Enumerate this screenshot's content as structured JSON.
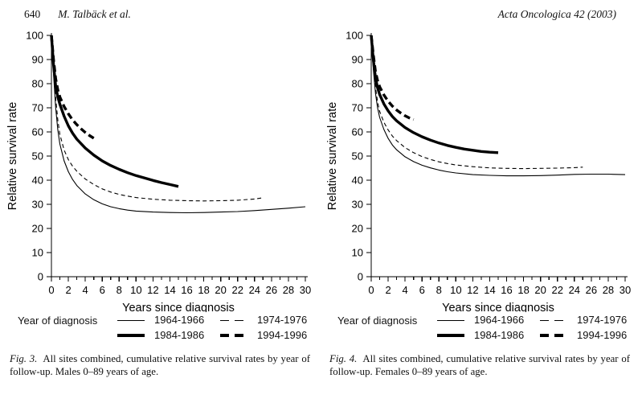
{
  "header": {
    "page_number": "640",
    "running_author": "M. Talbäck et al.",
    "journal": "Acta Oncologica 42 (2003)"
  },
  "chart_data": [
    {
      "type": "line",
      "title": "",
      "xlabel": "Years since diagnosis",
      "ylabel": "Relative survival rate",
      "xlim": [
        0,
        30
      ],
      "ylim": [
        0,
        100
      ],
      "x_label_step": 2,
      "x_minor_step": 1,
      "y_tick_step": 10,
      "grid": false,
      "legend_position": "below",
      "legend_title": "Year of diagnosis",
      "series": [
        {
          "name": "1964-1966",
          "style": "thin-solid",
          "points": [
            [
              0,
              100
            ],
            [
              0.25,
              84
            ],
            [
              0.5,
              70
            ],
            [
              0.75,
              61
            ],
            [
              1,
              55
            ],
            [
              1.5,
              48
            ],
            [
              2,
              43.5
            ],
            [
              2.5,
              40.3
            ],
            [
              3,
              37.8
            ],
            [
              4,
              34.3
            ],
            [
              5,
              31.9
            ],
            [
              6,
              30.2
            ],
            [
              7,
              29
            ],
            [
              8,
              28.2
            ],
            [
              9,
              27.6
            ],
            [
              10,
              27.2
            ],
            [
              12,
              26.8
            ],
            [
              14,
              26.6
            ],
            [
              16,
              26.5
            ],
            [
              18,
              26.6
            ],
            [
              20,
              26.8
            ],
            [
              22,
              27
            ],
            [
              24,
              27.4
            ],
            [
              26,
              27.9
            ],
            [
              28,
              28.4
            ],
            [
              30,
              29
            ]
          ]
        },
        {
          "name": "1974-1976",
          "style": "thin-dashed",
          "points": [
            [
              0,
              100
            ],
            [
              0.25,
              86
            ],
            [
              0.5,
              74
            ],
            [
              0.75,
              65
            ],
            [
              1,
              59
            ],
            [
              1.5,
              52.5
            ],
            [
              2,
              48.5
            ],
            [
              2.5,
              45.8
            ],
            [
              3,
              43.7
            ],
            [
              4,
              40.5
            ],
            [
              5,
              38.2
            ],
            [
              6,
              36.4
            ],
            [
              7,
              35.1
            ],
            [
              8,
              34.1
            ],
            [
              9,
              33.4
            ],
            [
              10,
              32.8
            ],
            [
              12,
              32.1
            ],
            [
              14,
              31.7
            ],
            [
              16,
              31.5
            ],
            [
              18,
              31.4
            ],
            [
              20,
              31.5
            ],
            [
              22,
              31.7
            ],
            [
              24,
              32.2
            ],
            [
              25,
              32.7
            ]
          ]
        },
        {
          "name": "1984-1986",
          "style": "thick-solid",
          "points": [
            [
              0,
              100
            ],
            [
              0.25,
              88
            ],
            [
              0.5,
              79
            ],
            [
              0.75,
              74.5
            ],
            [
              1,
              71.5
            ],
            [
              1.5,
              66.5
            ],
            [
              2,
              62.5
            ],
            [
              2.5,
              59.5
            ],
            [
              3,
              57
            ],
            [
              4,
              53.3
            ],
            [
              5,
              50.4
            ],
            [
              6,
              48
            ],
            [
              7,
              46.1
            ],
            [
              8,
              44.5
            ],
            [
              9,
              43.1
            ],
            [
              10,
              41.9
            ],
            [
              11,
              40.9
            ],
            [
              12,
              39.9
            ],
            [
              13,
              39
            ],
            [
              14,
              38.2
            ],
            [
              15,
              37.4
            ]
          ]
        },
        {
          "name": "1994-1996",
          "style": "thick-dashed",
          "points": [
            [
              0,
              100
            ],
            [
              0.25,
              90
            ],
            [
              0.5,
              82
            ],
            [
              0.75,
              77.5
            ],
            [
              1,
              74.5
            ],
            [
              1.5,
              70.5
            ],
            [
              2,
              67.5
            ],
            [
              2.5,
              65
            ],
            [
              3,
              63
            ],
            [
              3.5,
              61.3
            ],
            [
              4,
              59.8
            ],
            [
              4.5,
              58.5
            ],
            [
              5,
              57.4
            ]
          ]
        }
      ],
      "caption_label": "Fig. 3.",
      "caption": "All sites combined, cumulative relative survival rates by year of follow-up. Males 0–89 years of age."
    },
    {
      "type": "line",
      "title": "",
      "xlabel": "Years since diagnosis",
      "ylabel": "Relative survival rate",
      "xlim": [
        0,
        30
      ],
      "ylim": [
        0,
        100
      ],
      "x_label_step": 2,
      "x_minor_step": 1,
      "y_tick_step": 10,
      "grid": false,
      "legend_position": "below",
      "legend_title": "Year of diagnosis",
      "series": [
        {
          "name": "1964-1966",
          "style": "thin-solid",
          "points": [
            [
              0,
              100
            ],
            [
              0.25,
              86
            ],
            [
              0.5,
              76
            ],
            [
              0.75,
              70
            ],
            [
              1,
              66
            ],
            [
              1.5,
              61
            ],
            [
              2,
              57.3
            ],
            [
              2.5,
              54.6
            ],
            [
              3,
              52.6
            ],
            [
              4,
              49.7
            ],
            [
              5,
              47.7
            ],
            [
              6,
              46.2
            ],
            [
              7,
              45.1
            ],
            [
              8,
              44.2
            ],
            [
              9,
              43.5
            ],
            [
              10,
              43
            ],
            [
              12,
              42.3
            ],
            [
              14,
              42
            ],
            [
              16,
              41.8
            ],
            [
              18,
              41.8
            ],
            [
              20,
              41.9
            ],
            [
              22,
              42.1
            ],
            [
              24,
              42.4
            ],
            [
              26,
              42.5
            ],
            [
              28,
              42.5
            ],
            [
              30,
              42.3
            ]
          ]
        },
        {
          "name": "1974-1976",
          "style": "thin-dashed",
          "points": [
            [
              0,
              100
            ],
            [
              0.25,
              88
            ],
            [
              0.5,
              78.5
            ],
            [
              0.75,
              72.5
            ],
            [
              1,
              68.5
            ],
            [
              1.5,
              64
            ],
            [
              2,
              60.8
            ],
            [
              2.5,
              58.3
            ],
            [
              3,
              56.4
            ],
            [
              4,
              53.5
            ],
            [
              5,
              51.4
            ],
            [
              6,
              49.8
            ],
            [
              7,
              48.6
            ],
            [
              8,
              47.6
            ],
            [
              9,
              46.9
            ],
            [
              10,
              46.3
            ],
            [
              12,
              45.6
            ],
            [
              14,
              45.1
            ],
            [
              16,
              44.9
            ],
            [
              18,
              44.8
            ],
            [
              20,
              44.9
            ],
            [
              22,
              45
            ],
            [
              24,
              45.2
            ],
            [
              25,
              45.4
            ]
          ]
        },
        {
          "name": "1984-1986",
          "style": "thick-solid",
          "points": [
            [
              0,
              100
            ],
            [
              0.25,
              90
            ],
            [
              0.5,
              82.5
            ],
            [
              0.75,
              78.3
            ],
            [
              1,
              75.5
            ],
            [
              1.5,
              71.6
            ],
            [
              2,
              68.7
            ],
            [
              2.5,
              66.4
            ],
            [
              3,
              64.6
            ],
            [
              4,
              61.8
            ],
            [
              5,
              59.7
            ],
            [
              6,
              58
            ],
            [
              7,
              56.6
            ],
            [
              8,
              55.4
            ],
            [
              9,
              54.4
            ],
            [
              10,
              53.6
            ],
            [
              11,
              52.9
            ],
            [
              12,
              52.4
            ],
            [
              13,
              51.9
            ],
            [
              14,
              51.6
            ],
            [
              15,
              51.4
            ]
          ]
        },
        {
          "name": "1994-1996",
          "style": "thick-dashed",
          "points": [
            [
              0,
              100
            ],
            [
              0.25,
              92
            ],
            [
              0.5,
              85
            ],
            [
              0.75,
              81.3
            ],
            [
              1,
              78.7
            ],
            [
              1.5,
              75.3
            ],
            [
              2,
              72.7
            ],
            [
              2.5,
              70.7
            ],
            [
              3,
              69.1
            ],
            [
              3.5,
              67.8
            ],
            [
              4,
              66.7
            ],
            [
              4.5,
              65.8
            ],
            [
              5,
              65.1
            ]
          ]
        }
      ],
      "caption_label": "Fig. 4.",
      "caption": "All sites combined, cumulative relative survival rates by year of follow-up. Females 0–89 years of age."
    }
  ]
}
